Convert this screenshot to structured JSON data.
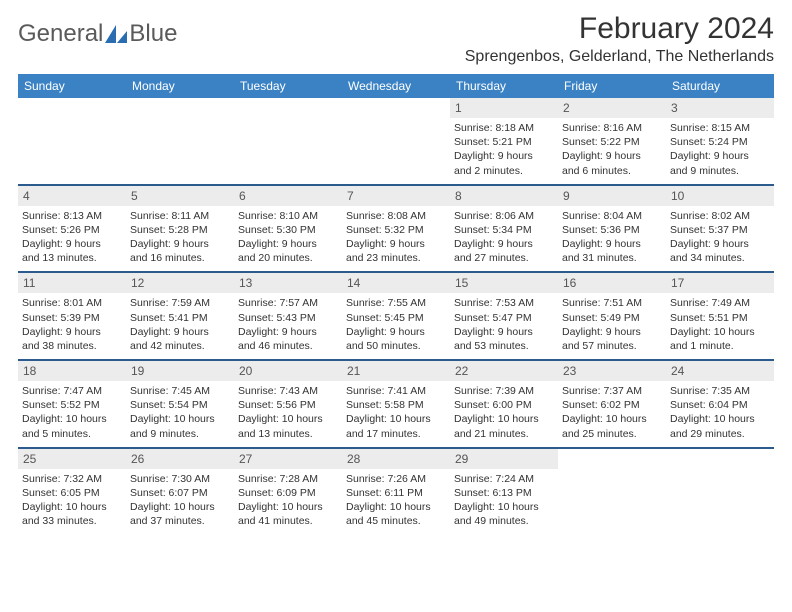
{
  "brand": {
    "word1": "General",
    "word2": "Blue",
    "logo_color": "#2a6db0"
  },
  "title": "February 2024",
  "location": "Sprengenbos, Gelderland, The Netherlands",
  "header_bg": "#3b82c4",
  "week_border": "#2a5b8c",
  "daynum_bg": "#ececec",
  "day_headers": [
    "Sunday",
    "Monday",
    "Tuesday",
    "Wednesday",
    "Thursday",
    "Friday",
    "Saturday"
  ],
  "weeks": [
    [
      null,
      null,
      null,
      null,
      {
        "n": "1",
        "sr": "8:18 AM",
        "ss": "5:21 PM",
        "d1": "9 hours",
        "d2": "and 2 minutes."
      },
      {
        "n": "2",
        "sr": "8:16 AM",
        "ss": "5:22 PM",
        "d1": "9 hours",
        "d2": "and 6 minutes."
      },
      {
        "n": "3",
        "sr": "8:15 AM",
        "ss": "5:24 PM",
        "d1": "9 hours",
        "d2": "and 9 minutes."
      }
    ],
    [
      {
        "n": "4",
        "sr": "8:13 AM",
        "ss": "5:26 PM",
        "d1": "9 hours",
        "d2": "and 13 minutes."
      },
      {
        "n": "5",
        "sr": "8:11 AM",
        "ss": "5:28 PM",
        "d1": "9 hours",
        "d2": "and 16 minutes."
      },
      {
        "n": "6",
        "sr": "8:10 AM",
        "ss": "5:30 PM",
        "d1": "9 hours",
        "d2": "and 20 minutes."
      },
      {
        "n": "7",
        "sr": "8:08 AM",
        "ss": "5:32 PM",
        "d1": "9 hours",
        "d2": "and 23 minutes."
      },
      {
        "n": "8",
        "sr": "8:06 AM",
        "ss": "5:34 PM",
        "d1": "9 hours",
        "d2": "and 27 minutes."
      },
      {
        "n": "9",
        "sr": "8:04 AM",
        "ss": "5:36 PM",
        "d1": "9 hours",
        "d2": "and 31 minutes."
      },
      {
        "n": "10",
        "sr": "8:02 AM",
        "ss": "5:37 PM",
        "d1": "9 hours",
        "d2": "and 34 minutes."
      }
    ],
    [
      {
        "n": "11",
        "sr": "8:01 AM",
        "ss": "5:39 PM",
        "d1": "9 hours",
        "d2": "and 38 minutes."
      },
      {
        "n": "12",
        "sr": "7:59 AM",
        "ss": "5:41 PM",
        "d1": "9 hours",
        "d2": "and 42 minutes."
      },
      {
        "n": "13",
        "sr": "7:57 AM",
        "ss": "5:43 PM",
        "d1": "9 hours",
        "d2": "and 46 minutes."
      },
      {
        "n": "14",
        "sr": "7:55 AM",
        "ss": "5:45 PM",
        "d1": "9 hours",
        "d2": "and 50 minutes."
      },
      {
        "n": "15",
        "sr": "7:53 AM",
        "ss": "5:47 PM",
        "d1": "9 hours",
        "d2": "and 53 minutes."
      },
      {
        "n": "16",
        "sr": "7:51 AM",
        "ss": "5:49 PM",
        "d1": "9 hours",
        "d2": "and 57 minutes."
      },
      {
        "n": "17",
        "sr": "7:49 AM",
        "ss": "5:51 PM",
        "d1": "10 hours",
        "d2": "and 1 minute."
      }
    ],
    [
      {
        "n": "18",
        "sr": "7:47 AM",
        "ss": "5:52 PM",
        "d1": "10 hours",
        "d2": "and 5 minutes."
      },
      {
        "n": "19",
        "sr": "7:45 AM",
        "ss": "5:54 PM",
        "d1": "10 hours",
        "d2": "and 9 minutes."
      },
      {
        "n": "20",
        "sr": "7:43 AM",
        "ss": "5:56 PM",
        "d1": "10 hours",
        "d2": "and 13 minutes."
      },
      {
        "n": "21",
        "sr": "7:41 AM",
        "ss": "5:58 PM",
        "d1": "10 hours",
        "d2": "and 17 minutes."
      },
      {
        "n": "22",
        "sr": "7:39 AM",
        "ss": "6:00 PM",
        "d1": "10 hours",
        "d2": "and 21 minutes."
      },
      {
        "n": "23",
        "sr": "7:37 AM",
        "ss": "6:02 PM",
        "d1": "10 hours",
        "d2": "and 25 minutes."
      },
      {
        "n": "24",
        "sr": "7:35 AM",
        "ss": "6:04 PM",
        "d1": "10 hours",
        "d2": "and 29 minutes."
      }
    ],
    [
      {
        "n": "25",
        "sr": "7:32 AM",
        "ss": "6:05 PM",
        "d1": "10 hours",
        "d2": "and 33 minutes."
      },
      {
        "n": "26",
        "sr": "7:30 AM",
        "ss": "6:07 PM",
        "d1": "10 hours",
        "d2": "and 37 minutes."
      },
      {
        "n": "27",
        "sr": "7:28 AM",
        "ss": "6:09 PM",
        "d1": "10 hours",
        "d2": "and 41 minutes."
      },
      {
        "n": "28",
        "sr": "7:26 AM",
        "ss": "6:11 PM",
        "d1": "10 hours",
        "d2": "and 45 minutes."
      },
      {
        "n": "29",
        "sr": "7:24 AM",
        "ss": "6:13 PM",
        "d1": "10 hours",
        "d2": "and 49 minutes."
      },
      null,
      null
    ]
  ],
  "labels": {
    "sunrise": "Sunrise: ",
    "sunset": "Sunset: ",
    "daylight": "Daylight: "
  }
}
